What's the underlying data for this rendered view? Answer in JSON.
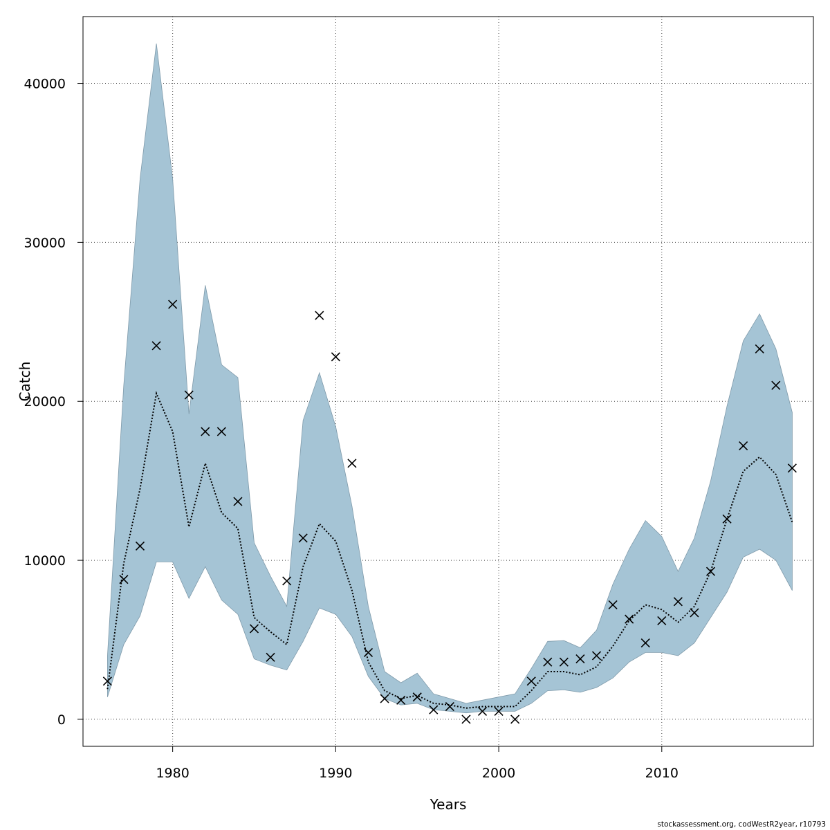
{
  "chart_data": {
    "type": "line",
    "xlabel": "Years",
    "ylabel": "Catch",
    "xlim": [
      1974.5,
      2019.3
    ],
    "ylim": [
      -1700,
      44200
    ],
    "x_ticks": [
      1980,
      1990,
      2000,
      2010
    ],
    "y_ticks": [
      0,
      10000,
      20000,
      30000,
      40000
    ],
    "grid": true,
    "colors": {
      "band": "#a5c4d5",
      "band_edge": "#7f9aaa",
      "line": "#000000",
      "points": "#000000",
      "grid": "#444444"
    },
    "x": [
      1976,
      1977,
      1978,
      1979,
      1980,
      1981,
      1982,
      1983,
      1984,
      1985,
      1986,
      1987,
      1988,
      1989,
      1990,
      1991,
      1992,
      1993,
      1994,
      1995,
      1996,
      1997,
      1998,
      1999,
      2000,
      2001,
      2002,
      2003,
      2004,
      2005,
      2006,
      2007,
      2008,
      2009,
      2010,
      2011,
      2012,
      2013,
      2014,
      2015,
      2016,
      2017,
      2018
    ],
    "series": [
      {
        "role": "estimate",
        "style": "dotted-line",
        "values": [
          1900,
          9800,
          14500,
          20500,
          18100,
          12100,
          16100,
          13000,
          12000,
          6400,
          5500,
          4700,
          9600,
          12300,
          11200,
          8100,
          3600,
          1800,
          1300,
          1500,
          1000,
          900,
          700,
          800,
          800,
          800,
          1800,
          3000,
          3000,
          2800,
          3300,
          4600,
          6200,
          7200,
          6900,
          6100,
          7100,
          9300,
          12600,
          15600,
          16500,
          15400,
          12400
        ]
      },
      {
        "role": "upper",
        "style": "band-upper",
        "values": [
          4000,
          21000,
          34000,
          42500,
          34000,
          19200,
          27300,
          22300,
          21500,
          11100,
          9000,
          7100,
          18800,
          21800,
          18400,
          13400,
          7100,
          3000,
          2300,
          2900,
          1600,
          1300,
          1000,
          1200,
          1400,
          1600,
          3200,
          4900,
          4950,
          4500,
          5600,
          8500,
          10700,
          12500,
          11500,
          9300,
          11400,
          15000,
          19700,
          23800,
          25500,
          23300,
          19300
        ]
      },
      {
        "role": "lower",
        "style": "band-lower",
        "values": [
          1400,
          4700,
          6500,
          9900,
          9900,
          7600,
          9600,
          7500,
          6600,
          3800,
          3400,
          3100,
          4900,
          7000,
          6600,
          5200,
          2700,
          1300,
          900,
          1000,
          600,
          500,
          400,
          500,
          500,
          500,
          1000,
          1800,
          1850,
          1700,
          2000,
          2600,
          3600,
          4200,
          4200,
          4000,
          4800,
          6400,
          8000,
          10200,
          10700,
          10000,
          8100
        ]
      },
      {
        "role": "observed",
        "style": "x-markers",
        "values": [
          2400,
          8800,
          10900,
          23500,
          26100,
          20400,
          18100,
          18100,
          13700,
          5700,
          3900,
          8700,
          11400,
          25400,
          22800,
          16100,
          4200,
          1300,
          1200,
          1400,
          600,
          800,
          0,
          500,
          500,
          0,
          2400,
          3600,
          3600,
          3800,
          4000,
          7200,
          6300,
          4800,
          6200,
          7400,
          6700,
          9300,
          12600,
          17200,
          23300,
          21000,
          15800
        ]
      }
    ]
  },
  "footer": "stockassessment.org, codWestR2year, r10793"
}
